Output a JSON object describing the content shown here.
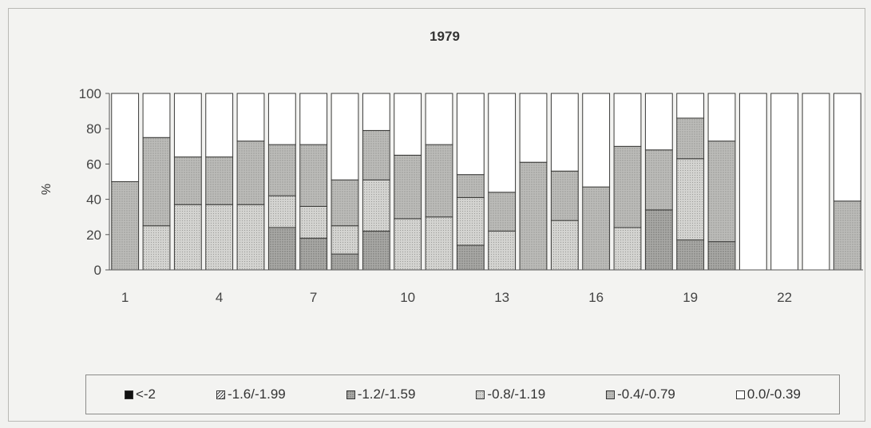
{
  "chart_data": {
    "type": "bar",
    "stacked": true,
    "title": "1979",
    "ylabel": "%",
    "xlabel": "",
    "ylim": [
      0,
      100
    ],
    "yticks": [
      0,
      20,
      40,
      60,
      80,
      100
    ],
    "categories": [
      "1",
      "2",
      "3",
      "4",
      "5",
      "6",
      "7",
      "8",
      "9",
      "10",
      "11",
      "12",
      "13",
      "14",
      "15",
      "16",
      "17",
      "18",
      "19",
      "20",
      "21",
      "22",
      "23",
      "24"
    ],
    "x_tick_labels": [
      "1",
      "",
      "",
      "4",
      "",
      "",
      "7",
      "",
      "",
      "10",
      "",
      "",
      "13",
      "",
      "",
      "16",
      "",
      "",
      "19",
      "",
      "",
      "22",
      "",
      ""
    ],
    "legend_position": "bottom",
    "series": [
      {
        "name": "<-2",
        "color": "#111111",
        "pattern": "solid-dark",
        "values": [
          0,
          0,
          0,
          0,
          0,
          0,
          0,
          0,
          0,
          0,
          0,
          0,
          0,
          0,
          0,
          0,
          0,
          0,
          0,
          0,
          0,
          0,
          0,
          0
        ]
      },
      {
        "name": "-1.6/-1.99",
        "color": "#555555",
        "pattern": "hatch",
        "values": [
          0,
          0,
          0,
          0,
          0,
          0,
          0,
          0,
          0,
          0,
          0,
          0,
          0,
          0,
          0,
          0,
          0,
          0,
          0,
          0,
          0,
          0,
          0,
          0
        ]
      },
      {
        "name": "-1.2/-1.59",
        "color": "#b3b3b0",
        "pattern": "dots-dark",
        "values": [
          0,
          0,
          0,
          0,
          0,
          24,
          18,
          9,
          22,
          0,
          0,
          14,
          0,
          0,
          0,
          0,
          0,
          34,
          17,
          16,
          0,
          0,
          0,
          0
        ]
      },
      {
        "name": "-0.8/-1.19",
        "color": "#d2d2cf",
        "pattern": "dots-light",
        "values": [
          0,
          25,
          37,
          37,
          37,
          18,
          18,
          16,
          29,
          29,
          30,
          27,
          22,
          0,
          28,
          0,
          24,
          0,
          46,
          0,
          0,
          0,
          0,
          0
        ]
      },
      {
        "name": "-0.4/-0.79",
        "color": "#bdbdba",
        "pattern": "dots-medium",
        "values": [
          50,
          50,
          27,
          27,
          36,
          29,
          35,
          26,
          28,
          36,
          41,
          13,
          22,
          61,
          28,
          47,
          46,
          34,
          23,
          57,
          0,
          0,
          0,
          39
        ]
      },
      {
        "name": "0.0/-0.39",
        "color": "#ffffff",
        "pattern": "none",
        "values": [
          50,
          25,
          36,
          36,
          27,
          29,
          29,
          49,
          21,
          35,
          29,
          46,
          56,
          39,
          44,
          53,
          30,
          32,
          14,
          27,
          100,
          100,
          100,
          61
        ]
      }
    ]
  }
}
